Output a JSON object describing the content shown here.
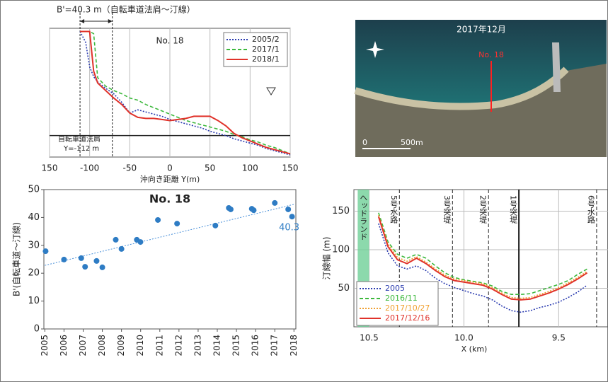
{
  "chart_data": [
    {
      "type": "line",
      "title": "No. 18",
      "width_label": "B'=40.3 m（自転車道法肩～汀線）",
      "note": "自転車道法肩",
      "note2": "Y=-112 m",
      "x_label": "沖向き距離 Y(m)",
      "x": [
        -112,
        -105,
        -100,
        -95,
        -90,
        -80,
        -70,
        -60,
        -50,
        -40,
        -30,
        -20,
        -10,
        0,
        10,
        20,
        30,
        40,
        50,
        60,
        70,
        80,
        90,
        100,
        110,
        120,
        130,
        140,
        150
      ],
      "series": [
        {
          "name": "2005/2",
          "color": "#2b3cb0",
          "style": "dotted",
          "values": [
            11.7,
            10.7,
            8.4,
            7.5,
            7.0,
            6.4,
            5.9,
            5.1,
            4.1,
            4.4,
            4.2,
            4.0,
            3.8,
            3.5,
            3.3,
            3.1,
            2.9,
            2.7,
            2.4,
            2.2,
            2.0,
            1.7,
            1.5,
            1.3,
            1.1,
            0.8,
            0.6,
            0.4,
            0.2
          ]
        },
        {
          "name": "2017/1",
          "color": "#3cb83c",
          "style": "dashed",
          "values": [
            11.7,
            11.7,
            11.7,
            11.5,
            7.4,
            6.6,
            6.2,
            5.9,
            5.5,
            5.3,
            4.9,
            4.6,
            4.3,
            4.0,
            3.7,
            3.4,
            3.2,
            3.0,
            2.8,
            2.6,
            2.4,
            2.1,
            1.9,
            1.6,
            1.4,
            1.1,
            0.9,
            0.6,
            0.3
          ]
        },
        {
          "name": "2018/1",
          "color": "#e0322a",
          "style": "solid",
          "values": [
            11.7,
            11.7,
            11.7,
            8.0,
            6.9,
            6.2,
            5.5,
            4.9,
            4.1,
            3.7,
            3.6,
            3.6,
            3.5,
            3.4,
            3.5,
            3.6,
            3.8,
            3.8,
            3.8,
            3.4,
            2.9,
            2.2,
            1.8,
            1.5,
            1.2,
            0.9,
            0.7,
            0.5,
            0.3
          ]
        }
      ],
      "xlim": [
        -150,
        150
      ],
      "ylim": [
        0,
        12
      ],
      "xticks": [
        {
          "value": -150,
          "label": "150"
        },
        -100,
        -50,
        0,
        50,
        100,
        150
      ],
      "vlines": [
        -112,
        -71.7
      ],
      "water_level": 2,
      "grid": true,
      "legend": "upper right"
    },
    {
      "type": "scatter",
      "title": "No. 18",
      "y_label": "B'(自転車道～汀線)",
      "x": [
        2005.04,
        2006.0,
        2006.9,
        2007.1,
        2007.7,
        2008.0,
        2008.7,
        2009.0,
        2009.8,
        2009.99,
        2010.9,
        2011.9,
        2013.9,
        2014.6,
        2014.7,
        2015.8,
        2015.9,
        2017.0,
        2017.7,
        2017.9
      ],
      "values": [
        27.9,
        24.9,
        25.4,
        22.3,
        24.4,
        22.1,
        32.0,
        28.7,
        32.0,
        31.2,
        39.1,
        37.8,
        37.1,
        43.4,
        42.9,
        43.1,
        42.6,
        45.2,
        42.9,
        40.3
      ],
      "value_labels": [
        null,
        null,
        null,
        null,
        null,
        null,
        null,
        null,
        null,
        null,
        null,
        null,
        null,
        null,
        null,
        null,
        null,
        null,
        null,
        "40.3"
      ],
      "color": "#2e7cc4",
      "trendline": {
        "x": [
          2005,
          2018
        ],
        "values": [
          22.8,
          44.7
        ],
        "color": "#4a90d9",
        "style": "dotted"
      },
      "xlim": [
        2004.95,
        2018.1
      ],
      "ylim": [
        0,
        50
      ],
      "xticks": [
        2005,
        2006,
        2007,
        2008,
        2009,
        2010,
        2011,
        2012,
        2013,
        2014,
        2015,
        2016,
        2017,
        2018
      ],
      "yticks": [
        0,
        10,
        20,
        30,
        40,
        50
      ]
    },
    {
      "type": "line",
      "x_label": "X (km)",
      "y_label": "汀線幅 (m)",
      "x": [
        10.45,
        10.4,
        10.35,
        10.3,
        10.25,
        10.2,
        10.15,
        10.1,
        10.05,
        10.0,
        9.95,
        9.9,
        9.85,
        9.8,
        9.75,
        9.7,
        9.65,
        9.6,
        9.55,
        9.5,
        9.45,
        9.4,
        9.35
      ],
      "series": [
        {
          "name": "2005",
          "color": "#2b3cb0",
          "style": "dotted",
          "values": [
            134,
            96,
            79,
            75,
            79,
            73,
            63,
            56,
            51,
            47,
            43,
            40,
            35,
            27,
            21,
            19,
            21,
            25,
            28,
            32,
            38,
            45,
            54
          ]
        },
        {
          "name": "2016/11",
          "color": "#3cb83c",
          "style": "dashed",
          "values": [
            148,
            110,
            94,
            89,
            94,
            89,
            79,
            70,
            64,
            61,
            59,
            57,
            53,
            46,
            42,
            42,
            43,
            47,
            51,
            55,
            60,
            68,
            75
          ]
        },
        {
          "name": "2017/10/27",
          "color": "#f0a030",
          "style": "dotted",
          "values": [
            145,
            107,
            90,
            85,
            91,
            84,
            75,
            67,
            62,
            60,
            58,
            56,
            51,
            44,
            38,
            37,
            38,
            42,
            46,
            51,
            57,
            64,
            72
          ]
        },
        {
          "name": "2017/12/16",
          "color": "#e0322a",
          "style": "solid",
          "values": [
            143,
            104,
            87,
            82,
            89,
            82,
            73,
            65,
            60,
            58,
            56,
            54,
            49,
            42,
            36,
            35,
            36,
            40,
            44,
            49,
            55,
            62,
            70
          ]
        }
      ],
      "xlim": [
        10.58,
        9.24
      ],
      "ylim": [
        0,
        178
      ],
      "xticks": [
        10.5,
        {
          "value": 10,
          "label": "10.0"
        },
        9.5
      ],
      "yticks": [
        50,
        100,
        150
      ],
      "headland": {
        "label": "ヘッドランド",
        "x": [
          10.56,
          10.5
        ]
      },
      "structures": [
        {
          "label": "5号水路",
          "x": 10.34,
          "style": "dashed"
        },
        {
          "label": "3号突堤",
          "x": 10.06,
          "style": "dashed"
        },
        {
          "label": "2号突堤",
          "x": 9.87,
          "style": "dashed"
        },
        {
          "label": "1号突堤",
          "x": 9.71,
          "style": "solid"
        },
        {
          "label": "6号水路",
          "x": 9.3,
          "style": "dashed"
        }
      ],
      "grid": true,
      "legend": "lower left"
    }
  ],
  "photo": {
    "title": "2017年12月",
    "marker": "No. 18",
    "scale_zero": "0",
    "scale": "500m"
  }
}
